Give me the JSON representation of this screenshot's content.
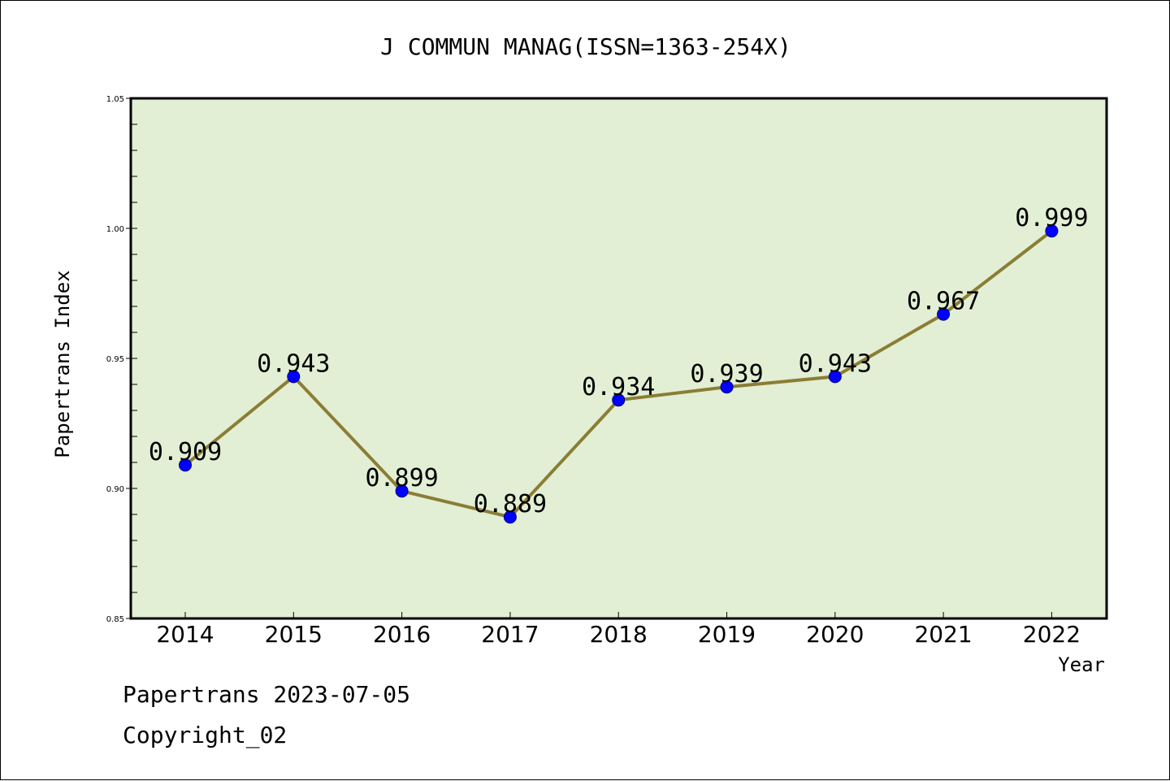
{
  "chart_data": {
    "type": "line",
    "title": "J COMMUN MANAG(ISSN=1363-254X)",
    "xlabel": "Year",
    "ylabel": "Papertrans Index",
    "categories": [
      "2014",
      "2015",
      "2016",
      "2017",
      "2018",
      "2019",
      "2020",
      "2021",
      "2022"
    ],
    "values": [
      0.909,
      0.943,
      0.899,
      0.889,
      0.934,
      0.939,
      0.943,
      0.967,
      0.999
    ],
    "data_labels": [
      "0.909",
      "0.943",
      "0.899",
      "0.889",
      "0.934",
      "0.939",
      "0.943",
      "0.967",
      "0.999"
    ],
    "ylim": [
      0.85,
      1.05
    ],
    "yticks": [
      "0.85",
      "0.90",
      "0.95",
      "1.00",
      "1.05"
    ],
    "grid": false,
    "colors": {
      "plot_background": "#e2efd4",
      "line": "#8b7d35",
      "marker": "#0000ff"
    }
  },
  "footer": {
    "line1": "Papertrans 2023-07-05",
    "line2": "Copyright_02"
  }
}
